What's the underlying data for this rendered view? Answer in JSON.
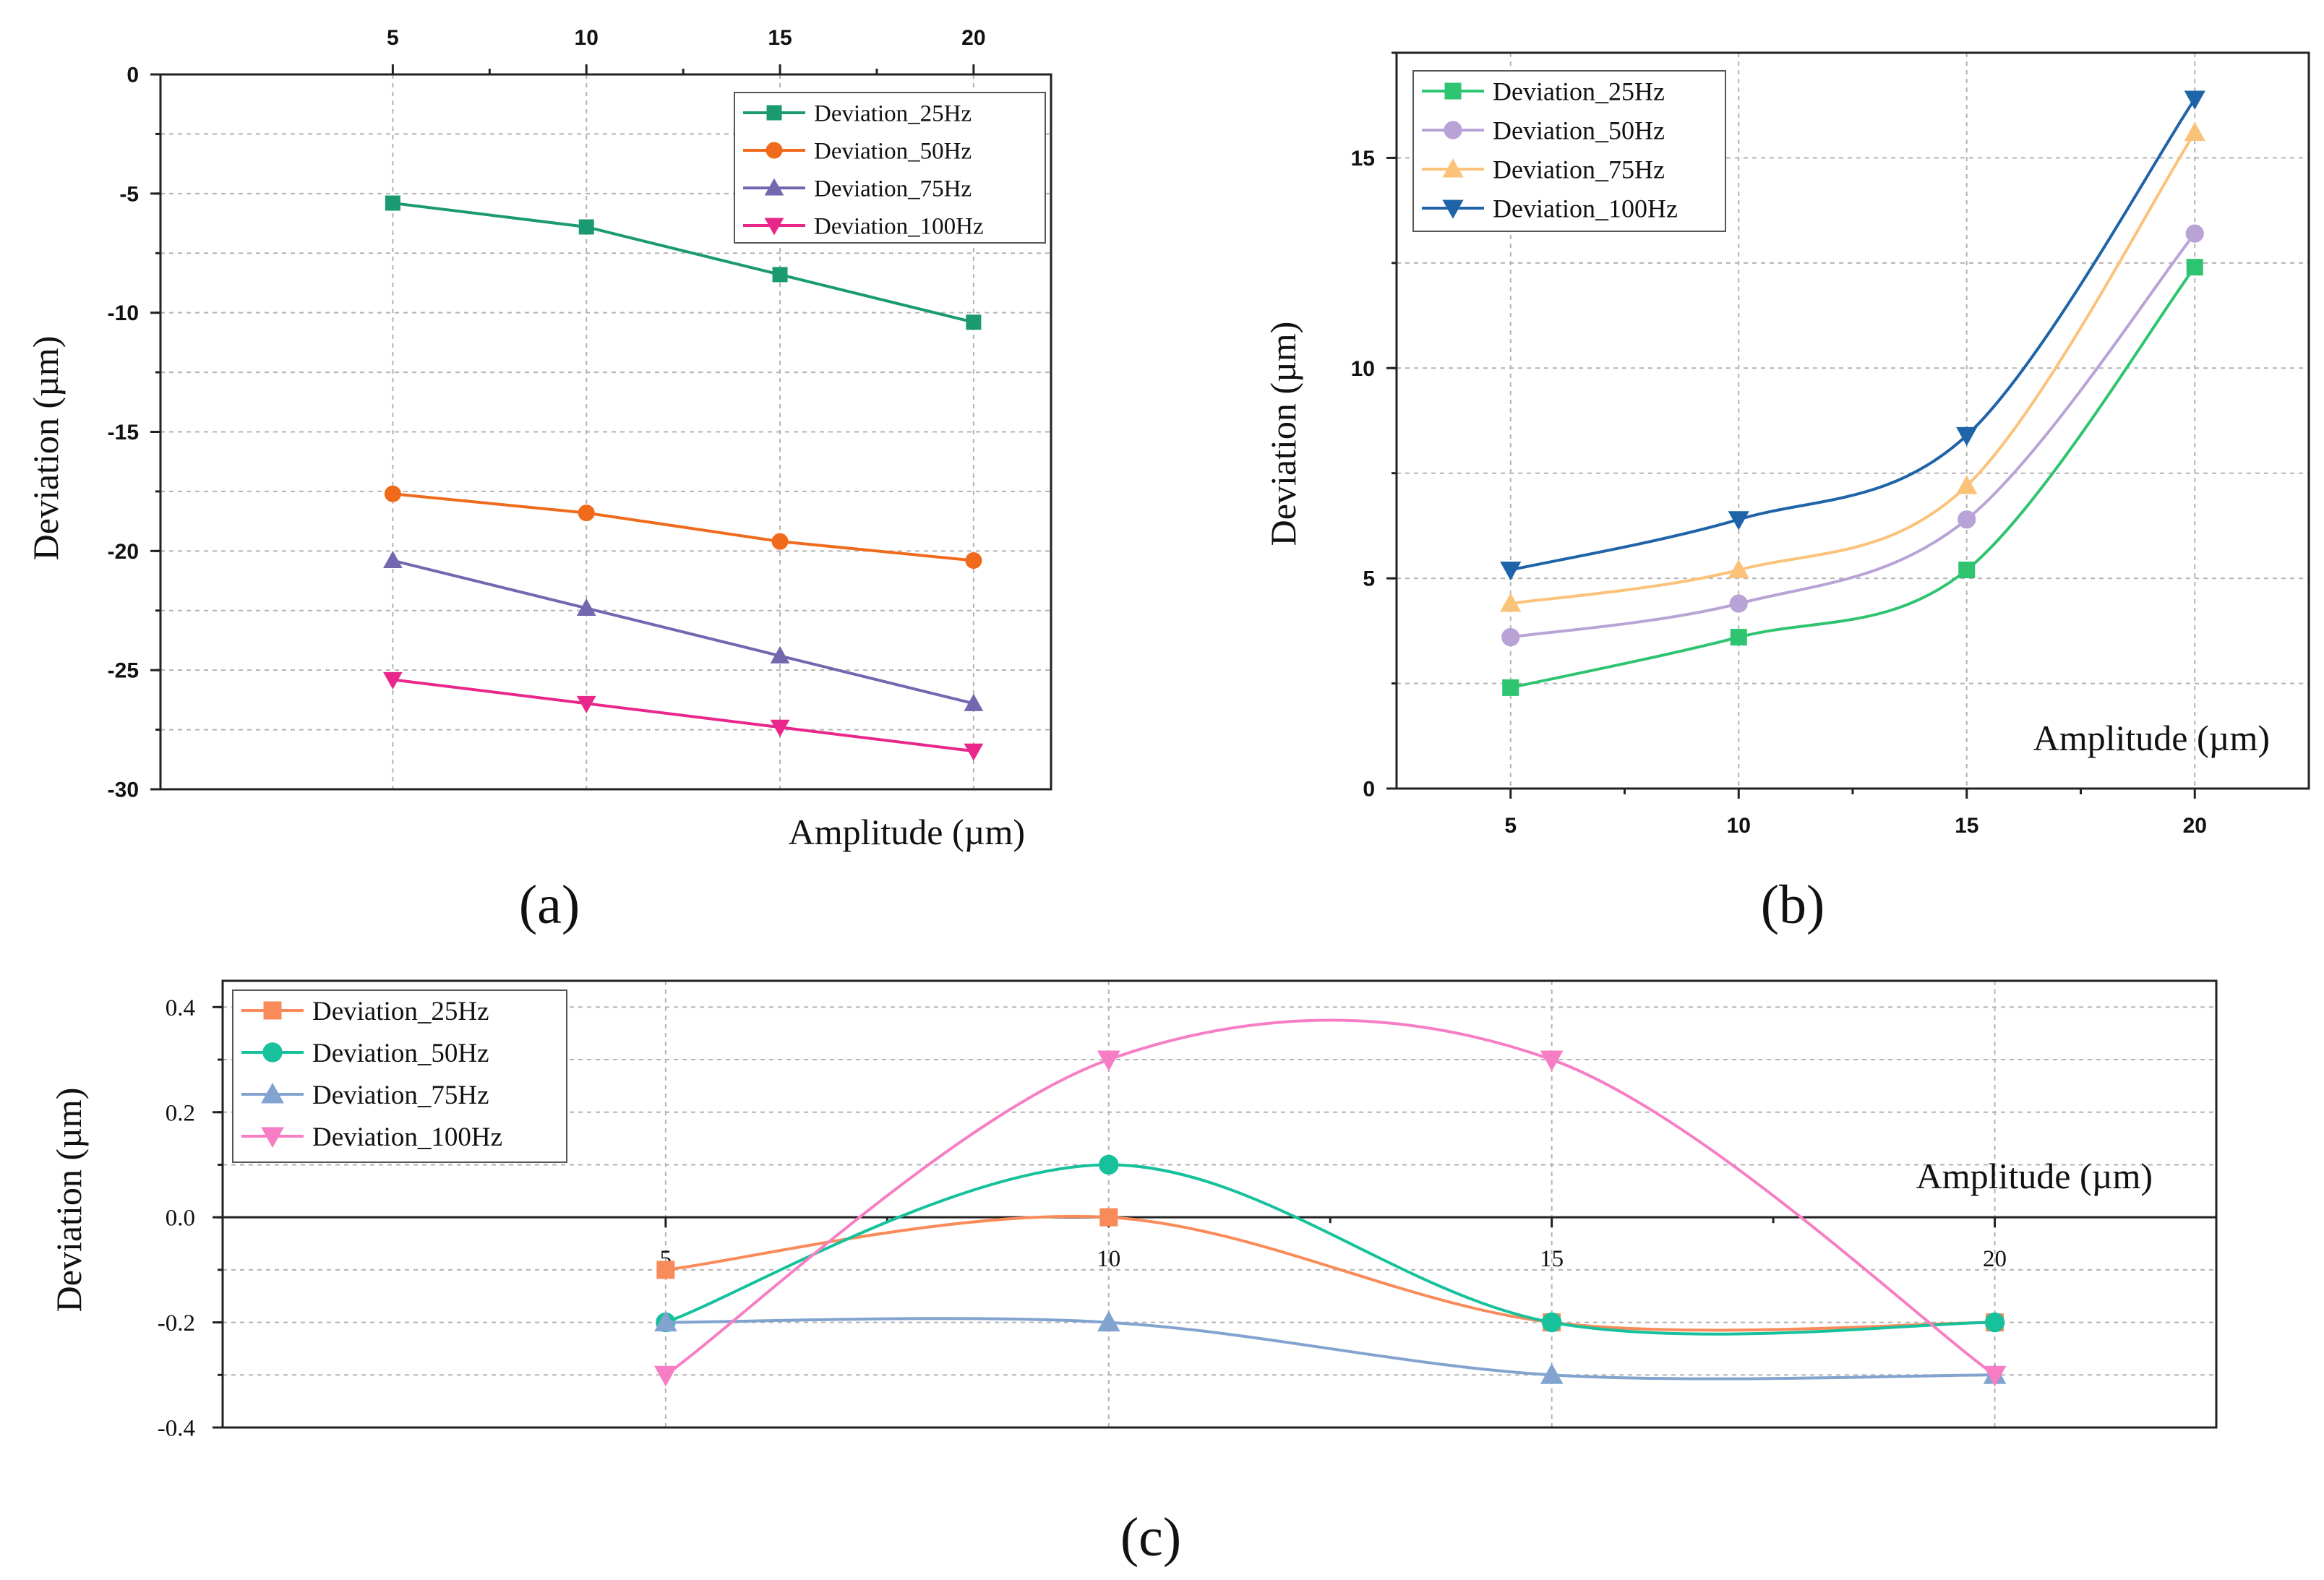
{
  "chart_data": [
    {
      "panel": "(a)",
      "type": "line",
      "title": "",
      "xlabel": "Amplitude (µm)",
      "ylabel": "Deviation (µm)",
      "x": [
        5,
        10,
        15,
        20
      ],
      "x_tick_labels": [
        "5",
        "10",
        "15",
        "20"
      ],
      "xlim": [
        -1,
        22
      ],
      "ylim": [
        -30,
        0
      ],
      "y_ticks": [
        0,
        -5,
        -10,
        -15,
        -20,
        -25,
        -30
      ],
      "y_tick_labels": [
        "0",
        "-5",
        "-10",
        "-15",
        "-20",
        "-25",
        "-30"
      ],
      "x_axis_position": "top",
      "grid": true,
      "legend_position": "top-right",
      "series": [
        {
          "name": "Deviation_25Hz",
          "color": "#1b9a72",
          "marker": "square",
          "values": [
            -5.4,
            -6.4,
            -8.4,
            -10.4
          ]
        },
        {
          "name": "Deviation_50Hz",
          "color": "#f06a1c",
          "marker": "circle",
          "values": [
            -17.6,
            -18.4,
            -19.6,
            -20.4
          ]
        },
        {
          "name": "Deviation_75Hz",
          "color": "#7467b0",
          "marker": "triangle-up",
          "values": [
            -20.4,
            -22.4,
            -24.4,
            -26.4
          ]
        },
        {
          "name": "Deviation_100Hz",
          "color": "#e9278a",
          "marker": "triangle-down",
          "values": [
            -25.4,
            -26.4,
            -27.4,
            -28.4
          ]
        }
      ]
    },
    {
      "panel": "(b)",
      "type": "line",
      "title": "",
      "xlabel": "Amplitude (µm)",
      "ylabel": "Deviation (µm)",
      "x": [
        5,
        10,
        15,
        20
      ],
      "x_tick_labels": [
        "5",
        "10",
        "15",
        "20"
      ],
      "xlim": [
        2.5,
        22.5
      ],
      "ylim": [
        0,
        17.5
      ],
      "y_ticks": [
        0,
        5,
        10,
        15
      ],
      "y_tick_labels": [
        "0",
        "5",
        "10",
        "15"
      ],
      "grid": true,
      "legend_position": "top-left",
      "series": [
        {
          "name": "Deviation_25Hz",
          "color": "#2fc46f",
          "marker": "square",
          "values": [
            2.4,
            3.6,
            5.2,
            12.4
          ]
        },
        {
          "name": "Deviation_50Hz",
          "color": "#b9a3d6",
          "marker": "circle",
          "values": [
            3.6,
            4.4,
            6.4,
            13.2
          ]
        },
        {
          "name": "Deviation_75Hz",
          "color": "#fbc27a",
          "marker": "triangle-up",
          "values": [
            4.4,
            5.2,
            7.2,
            15.6
          ]
        },
        {
          "name": "Deviation_100Hz",
          "color": "#1f63a8",
          "marker": "triangle-down",
          "values": [
            5.2,
            6.4,
            8.4,
            16.4
          ]
        }
      ]
    },
    {
      "panel": "(c)",
      "type": "line",
      "title": "",
      "xlabel": "Amplitude (µm)",
      "ylabel": "Deviation (µm)",
      "x": [
        5,
        10,
        15,
        20
      ],
      "x_tick_labels": [
        "5",
        "10",
        "15",
        "20"
      ],
      "xlim": [
        0,
        22.5
      ],
      "ylim": [
        -0.4,
        0.45
      ],
      "y_ticks": [
        0.4,
        0.2,
        0.0,
        -0.2,
        -0.4
      ],
      "y_tick_labels": [
        "0.4",
        "0.2",
        "0.0",
        "-0.2",
        "-0.4"
      ],
      "grid": true,
      "legend_position": "top-left",
      "series": [
        {
          "name": "Deviation_25Hz",
          "color": "#f98b5a",
          "marker": "square",
          "values": [
            -0.1,
            0.0,
            -0.2,
            -0.2
          ]
        },
        {
          "name": "Deviation_50Hz",
          "color": "#16c19c",
          "marker": "circle",
          "values": [
            -0.2,
            0.1,
            -0.2,
            -0.2
          ]
        },
        {
          "name": "Deviation_75Hz",
          "color": "#82a3cf",
          "marker": "triangle-up",
          "values": [
            -0.2,
            -0.2,
            -0.3,
            -0.3
          ]
        },
        {
          "name": "Deviation_100Hz",
          "color": "#f77ec5",
          "marker": "triangle-down",
          "values": [
            -0.3,
            0.3,
            0.3,
            -0.3
          ]
        }
      ]
    }
  ]
}
